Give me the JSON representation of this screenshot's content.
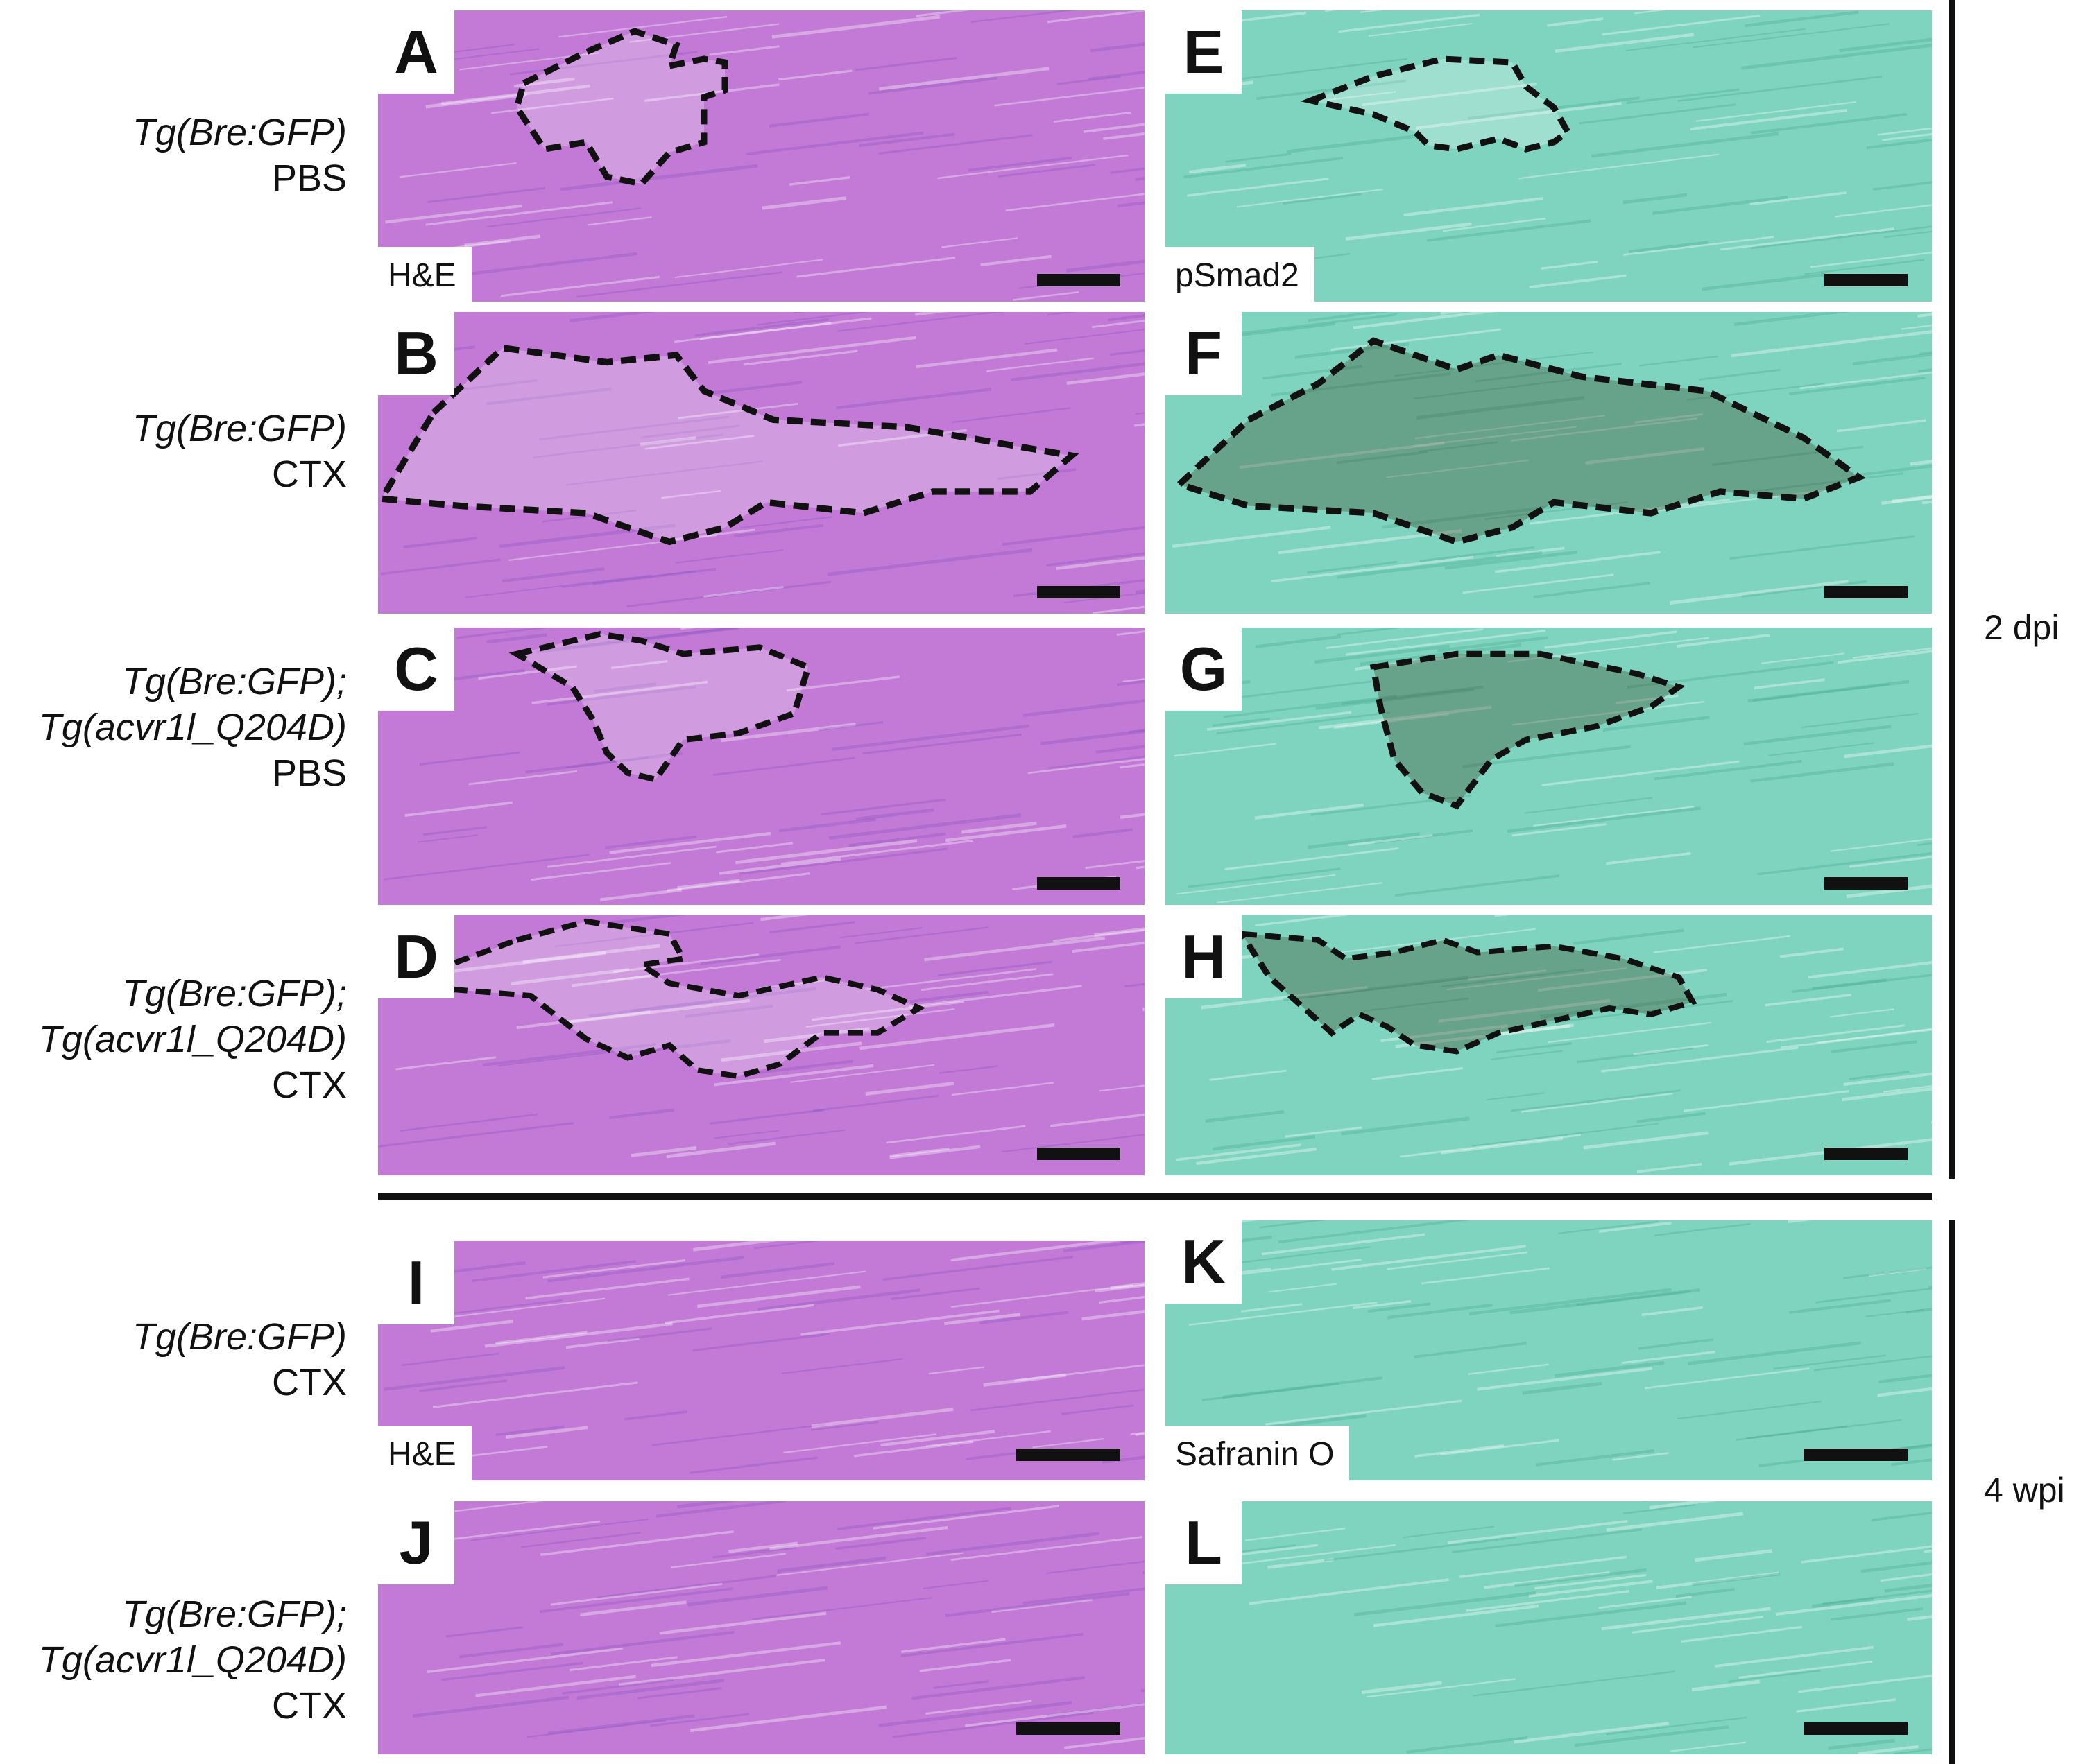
{
  "rows": [
    {
      "lines": [
        {
          "text": "Tg(Bre:GFP)",
          "italic": true
        },
        {
          "text": "PBS",
          "italic": false
        }
      ]
    },
    {
      "lines": [
        {
          "text": "Tg(Bre:GFP)",
          "italic": true
        },
        {
          "text": "CTX",
          "italic": false
        }
      ]
    },
    {
      "lines": [
        {
          "text": "Tg(Bre:GFP);",
          "italic": true
        },
        {
          "text": "Tg(acvr1l_Q204D)",
          "italic": true
        },
        {
          "text": "PBS",
          "italic": false
        }
      ]
    },
    {
      "lines": [
        {
          "text": "Tg(Bre:GFP);",
          "italic": true
        },
        {
          "text": "Tg(acvr1l_Q204D)",
          "italic": true
        },
        {
          "text": "CTX",
          "italic": false
        }
      ]
    },
    {
      "lines": [
        {
          "text": "Tg(Bre:GFP)",
          "italic": true
        },
        {
          "text": "CTX",
          "italic": false
        }
      ]
    },
    {
      "lines": [
        {
          "text": "Tg(Bre:GFP);",
          "italic": true
        },
        {
          "text": "Tg(acvr1l_Q204D)",
          "italic": true
        },
        {
          "text": "CTX",
          "italic": false
        }
      ]
    }
  ],
  "panels": [
    {
      "letter": "A",
      "stain_label": "H&E",
      "stain": "he"
    },
    {
      "letter": "E",
      "stain_label": "pSmad2",
      "stain": "ihc"
    },
    {
      "letter": "B",
      "stain_label": "",
      "stain": "he"
    },
    {
      "letter": "F",
      "stain_label": "",
      "stain": "ihc"
    },
    {
      "letter": "C",
      "stain_label": "",
      "stain": "he"
    },
    {
      "letter": "G",
      "stain_label": "",
      "stain": "ihc"
    },
    {
      "letter": "D",
      "stain_label": "",
      "stain": "he"
    },
    {
      "letter": "H",
      "stain_label": "",
      "stain": "ihc"
    },
    {
      "letter": "I",
      "stain_label": "H&E",
      "stain": "he"
    },
    {
      "letter": "K",
      "stain_label": "Safranin O",
      "stain": "ihc"
    },
    {
      "letter": "J",
      "stain_label": "",
      "stain": "he"
    },
    {
      "letter": "L",
      "stain_label": "",
      "stain": "ihc"
    }
  ],
  "timepoints": [
    {
      "label": "2 dpi"
    },
    {
      "label": "4 wpi"
    }
  ],
  "colors": {
    "he": "#c27ad6",
    "he_dark": "#8f55c2",
    "ihc": "#7fd4bf",
    "ihc_dark": "#4aa891",
    "outline": "#111111"
  }
}
